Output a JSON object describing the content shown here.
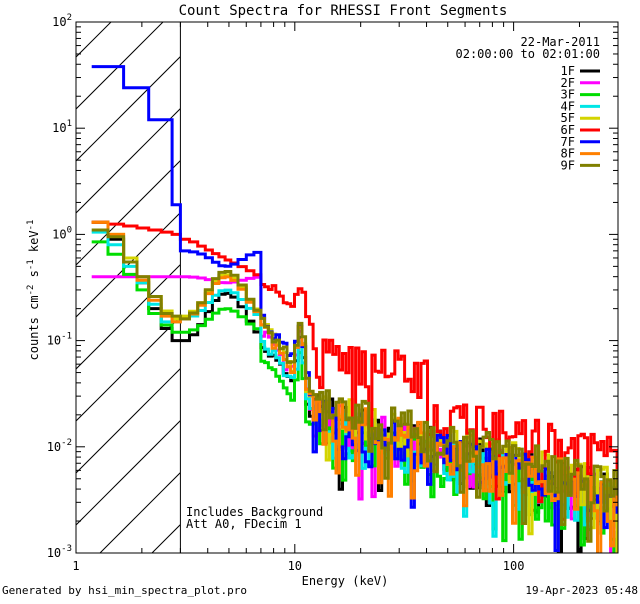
{
  "chart_data": {
    "type": "line",
    "title": "Count Spectra for RHESSI Front Segments",
    "xlabel": "Energy (keV)",
    "ylabel": "counts cm",
    "ylabel_sup1": "-2",
    "ylabel_mid": " s",
    "ylabel_sup2": "-1",
    "ylabel_end": " keV",
    "ylabel_sup3": "-1",
    "xscale": "log",
    "yscale": "log",
    "xlim": [
      1,
      300
    ],
    "ylim": [
      0.001,
      100
    ],
    "x_ticks": [
      {
        "value": 1,
        "label": "1"
      },
      {
        "value": 10,
        "label": "10"
      },
      {
        "value": 100,
        "label": "100"
      }
    ],
    "y_ticks": [
      {
        "value": 100,
        "base": "10",
        "exp": "2"
      },
      {
        "value": 10,
        "base": "10",
        "exp": "1"
      },
      {
        "value": 1,
        "base": "10",
        "exp": "0"
      },
      {
        "value": 0.1,
        "base": "10",
        "exp": "-1"
      },
      {
        "value": 0.01,
        "base": "10",
        "exp": "-2"
      },
      {
        "value": 0.001,
        "base": "10",
        "exp": "-3"
      }
    ],
    "date": "22-Mar-2011",
    "time_range": "02:00:00 to 02:01:00",
    "excluded_region": {
      "from": 1,
      "to": 3
    },
    "annotations": [
      "Includes Background",
      "Att A0, FDecim 1"
    ],
    "series": [
      {
        "name": "1F",
        "color": "#000000",
        "low": [
          1.3,
          0.9,
          0.6,
          0.35,
          0.2,
          0.13,
          0.1,
          0.1
        ],
        "peak": 0.28,
        "fe": 0.08,
        "tail": 0.02,
        "seed": 1
      },
      {
        "name": "2F",
        "color": "#ff00ff",
        "low": [
          0.4,
          0.4,
          0.4,
          0.4,
          0.4,
          0.4,
          0.4,
          0.4
        ],
        "peak": 0.35,
        "fe": 0.09,
        "tail": 0.018,
        "seed": 2
      },
      {
        "name": "3F",
        "color": "#00dd00",
        "low": [
          0.85,
          0.65,
          0.42,
          0.3,
          0.18,
          0.14,
          0.12,
          0.12
        ],
        "peak": 0.2,
        "fe": 0.06,
        "tail": 0.015,
        "seed": 3
      },
      {
        "name": "4F",
        "color": "#00e6e6",
        "low": [
          1.05,
          0.8,
          0.5,
          0.35,
          0.22,
          0.15,
          0.15,
          0.16
        ],
        "peak": 0.3,
        "fe": 0.07,
        "tail": 0.016,
        "seed": 4
      },
      {
        "name": "5F",
        "color": "#d4d400",
        "low": [
          1.3,
          1.0,
          0.6,
          0.4,
          0.26,
          0.19,
          0.16,
          0.17
        ],
        "peak": 0.42,
        "fe": 0.1,
        "tail": 0.022,
        "seed": 5
      },
      {
        "name": "6F",
        "color": "#ff0000",
        "low": [
          1.3,
          1.25,
          1.2,
          1.15,
          1.1,
          1.05,
          1.0,
          0.9
        ],
        "peak": 0.45,
        "fe": 0.15,
        "tail": 0.03,
        "seed": 6
      },
      {
        "name": "7F",
        "color": "#0000ff",
        "low": [
          38,
          38,
          24,
          24,
          12,
          12,
          1.9,
          0.7
        ],
        "peak": 0.5,
        "fe": 0.1,
        "tail": 0.018,
        "seed": 7
      },
      {
        "name": "8F",
        "color": "#ff8000",
        "low": [
          1.3,
          1.0,
          0.55,
          0.37,
          0.24,
          0.17,
          0.15,
          0.16
        ],
        "peak": 0.4,
        "fe": 0.11,
        "tail": 0.02,
        "seed": 8
      },
      {
        "name": "9F",
        "color": "#808000",
        "low": [
          1.1,
          0.95,
          0.55,
          0.4,
          0.26,
          0.18,
          0.17,
          0.16
        ],
        "peak": 0.45,
        "fe": 0.12,
        "tail": 0.024,
        "seed": 9
      }
    ]
  },
  "footer": {
    "generated": "Generated by hsi_min_spectra_plot.pro",
    "timestamp": "19-Apr-2023 05:48"
  }
}
